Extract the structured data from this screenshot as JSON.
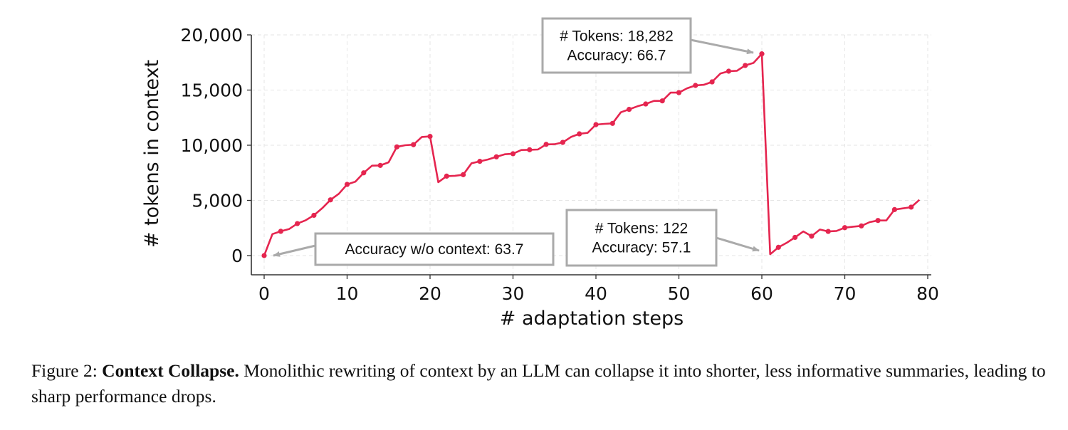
{
  "chart_data": {
    "type": "line",
    "title": "",
    "xlabel": "# adaptation steps",
    "ylabel": "# tokens in context",
    "xlim": [
      -1,
      80.5
    ],
    "ylim": [
      -1800,
      20000
    ],
    "xticks": [
      0,
      10,
      20,
      30,
      40,
      50,
      60,
      70,
      80
    ],
    "yticks": [
      0,
      5000,
      10000,
      15000,
      20000
    ],
    "xtick_labels": [
      "0",
      "10",
      "20",
      "30",
      "40",
      "50",
      "60",
      "70",
      "80"
    ],
    "ytick_labels": [
      "0",
      "5,000",
      "10,000",
      "15,000",
      "20,000"
    ],
    "grid": true,
    "legend": "none",
    "series": [
      {
        "name": "# tokens in context",
        "color": "#E5254F",
        "marker_every": 2,
        "x": [
          0,
          1,
          2,
          3,
          4,
          5,
          6,
          7,
          8,
          9,
          10,
          11,
          12,
          13,
          14,
          15,
          16,
          17,
          18,
          19,
          20,
          21,
          22,
          23,
          24,
          25,
          26,
          27,
          28,
          29,
          30,
          31,
          32,
          33,
          34,
          35,
          36,
          37,
          38,
          39,
          40,
          41,
          42,
          43,
          44,
          45,
          46,
          47,
          48,
          49,
          50,
          51,
          52,
          53,
          54,
          55,
          56,
          57,
          58,
          59,
          60,
          61,
          62,
          63,
          64,
          65,
          66,
          67,
          68,
          69,
          70,
          71,
          72,
          73,
          74,
          75,
          76,
          77,
          78,
          79
        ],
        "values": [
          0,
          1950,
          2200,
          2400,
          2900,
          3200,
          3650,
          4300,
          5050,
          5600,
          6450,
          6700,
          7500,
          8150,
          8170,
          8450,
          9850,
          10000,
          10050,
          10750,
          10800,
          6650,
          7200,
          7230,
          7330,
          8370,
          8540,
          8710,
          8950,
          9180,
          9230,
          9570,
          9590,
          9610,
          10080,
          10090,
          10260,
          10750,
          11030,
          11120,
          11870,
          11935,
          11980,
          12990,
          13250,
          13530,
          13740,
          14020,
          14020,
          14770,
          14770,
          15160,
          15420,
          15480,
          15740,
          16500,
          16710,
          16750,
          17230,
          17460,
          18282,
          122,
          750,
          1160,
          1650,
          2190,
          1760,
          2360,
          2190,
          2230,
          2530,
          2620,
          2690,
          3030,
          3180,
          3180,
          4170,
          4280,
          4390,
          5050
        ]
      }
    ],
    "annotations": [
      {
        "lines": [
          "# Tokens: 18,282",
          "Accuracy: 66.7"
        ],
        "target_x": 60,
        "target_y": 18282
      },
      {
        "lines": [
          "# Tokens: 122",
          "Accuracy: 57.1"
        ],
        "target_x": 61,
        "target_y": 122
      },
      {
        "lines": [
          "Accuracy w/o context: 63.7"
        ],
        "target_x": 0,
        "target_y": 0
      }
    ]
  },
  "caption": {
    "label": "Figure 2:",
    "bold": "Context Collapse.",
    "text": "Monolithic rewriting of context by an LLM can collapse it into shorter, less informative summaries, leading to sharp performance drops."
  }
}
